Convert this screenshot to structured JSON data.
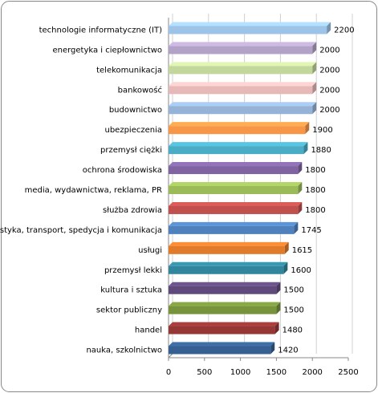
{
  "chart_data": {
    "type": "bar",
    "orientation": "horizontal",
    "categories": [
      "technologie informatyczne (IT)",
      "energetyka i ciepłownictwo",
      "telekomunikacja",
      "bankowość",
      "budownictwo",
      "ubezpieczenia",
      "przemysł ciężki",
      "ochrona środowiska",
      "media, wydawnictwa, reklama, PR",
      "służba zdrowia",
      "logistyka, transport, spedycja i komunikacja",
      "usługi",
      "przemysł lekki",
      "kultura i sztuka",
      "sektor publiczny",
      "handel",
      "nauka, szkolnictwo"
    ],
    "values": [
      2200,
      2000,
      2000,
      2000,
      2000,
      1900,
      1880,
      1800,
      1800,
      1800,
      1745,
      1615,
      1600,
      1500,
      1500,
      1480,
      1420
    ],
    "colors": [
      "#9dc3e6",
      "#b3a2c7",
      "#c3d69b",
      "#e6b9b8",
      "#95b3d7",
      "#f79646",
      "#4bacc6",
      "#8064a2",
      "#9bbb59",
      "#c0504d",
      "#4f81bd",
      "#e07b2c",
      "#31859c",
      "#604a7b",
      "#77933c",
      "#953735",
      "#376092"
    ],
    "xlim": [
      0,
      2500
    ],
    "xticks": [
      0,
      500,
      1000,
      1500,
      2000,
      2500
    ],
    "grid": true
  }
}
